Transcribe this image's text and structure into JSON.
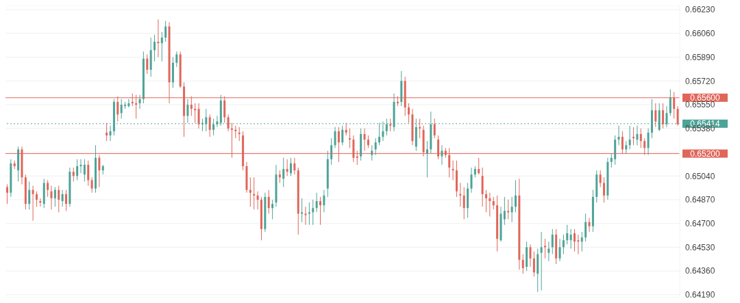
{
  "chart_data": {
    "type": "candlestick",
    "categories": [
      null,
      null,
      null,
      null,
      null,
      null,
      null,
      null,
      null,
      null,
      null,
      null,
      null,
      null,
      null,
      null,
      null,
      null,
      null,
      null,
      null,
      null,
      null,
      null,
      null,
      null,
      null,
      null,
      null,
      null,
      null,
      null,
      null,
      null,
      null,
      null,
      null,
      null,
      null,
      null,
      null,
      null,
      null,
      null,
      null,
      null,
      null,
      null,
      null,
      null,
      null,
      null,
      null,
      null,
      null,
      null,
      null,
      null,
      null,
      null,
      null,
      null,
      null,
      null,
      null,
      null,
      null,
      null,
      null,
      null,
      null,
      null,
      null,
      null,
      null,
      null,
      null,
      null,
      null,
      null,
      null,
      null,
      null,
      null,
      null,
      null,
      null,
      null,
      null,
      null,
      null,
      null,
      null,
      null,
      null,
      null,
      null,
      null,
      null,
      null,
      null,
      null,
      null,
      null,
      null,
      null,
      null,
      null,
      null,
      null,
      null,
      null,
      null,
      null,
      null,
      null,
      null,
      null,
      null,
      null,
      null,
      null,
      null,
      null,
      null,
      null,
      null,
      null,
      null,
      null,
      null,
      null,
      null,
      null,
      null,
      null,
      null,
      null,
      null,
      null,
      null,
      null,
      null,
      null,
      null,
      null,
      null,
      null,
      null,
      null,
      null,
      null,
      null,
      null,
      null,
      null,
      null,
      null,
      null,
      null,
      null,
      null,
      null,
      null,
      null,
      null,
      null,
      null,
      null,
      null,
      null,
      null,
      null,
      null,
      null,
      null,
      null,
      null,
      null,
      null,
      null,
      null,
      null
    ],
    "ohlc": [
      [
        0.6496,
        0.6498,
        0.6484,
        0.6492
      ],
      [
        0.6492,
        0.6516,
        0.6489,
        0.6513
      ],
      [
        0.6513,
        0.6515,
        0.6509,
        0.6511
      ],
      [
        0.6508,
        0.6525,
        0.65,
        0.6523
      ],
      [
        0.6523,
        0.6525,
        0.6498,
        0.6503
      ],
      [
        0.6503,
        0.6505,
        0.648,
        0.6484
      ],
      [
        0.6484,
        0.65,
        0.648,
        0.6494
      ],
      [
        0.6494,
        0.6497,
        0.6472,
        0.6491
      ],
      [
        0.6491,
        0.6493,
        0.6482,
        0.6487
      ],
      [
        0.6486,
        0.6488,
        0.6482,
        0.6485
      ],
      [
        0.6484,
        0.6502,
        0.6481,
        0.6499
      ],
      [
        0.6499,
        0.6501,
        0.6489,
        0.6494
      ],
      [
        0.6493,
        0.6497,
        0.648,
        0.6488
      ],
      [
        0.6488,
        0.6496,
        0.6482,
        0.6494
      ],
      [
        0.6494,
        0.6497,
        0.6478,
        0.6487
      ],
      [
        0.6486,
        0.6494,
        0.6482,
        0.6491
      ],
      [
        0.6491,
        0.6494,
        0.6479,
        0.6484
      ],
      [
        0.6484,
        0.651,
        0.6482,
        0.6507
      ],
      [
        0.6507,
        0.651,
        0.65,
        0.6504
      ],
      [
        0.6504,
        0.6516,
        0.6501,
        0.6511
      ],
      [
        0.6511,
        0.6516,
        0.6506,
        0.6512
      ],
      [
        0.6505,
        0.6516,
        0.65,
        0.6512
      ],
      [
        0.6512,
        0.6515,
        0.6497,
        0.6501
      ],
      [
        0.6501,
        0.6503,
        0.6492,
        0.6495
      ],
      [
        0.6495,
        0.6526,
        0.6492,
        0.6517
      ],
      [
        0.6517,
        0.6519,
        0.6496,
        0.6508
      ],
      [
        0.6508,
        0.6512,
        0.6505,
        0.6511
      ],
      [
        0.6535,
        0.6542,
        0.6529,
        0.6533
      ],
      [
        0.6533,
        0.654,
        0.6529,
        0.6536
      ],
      [
        0.6536,
        0.6559,
        0.6533,
        0.6557
      ],
      [
        0.6557,
        0.6561,
        0.6543,
        0.6548
      ],
      [
        0.6549,
        0.6559,
        0.6545,
        0.6555
      ],
      [
        0.6554,
        0.6557,
        0.6552,
        0.6555
      ],
      [
        0.6554,
        0.6559,
        0.6553,
        0.6556
      ],
      [
        0.6557,
        0.6563,
        0.6554,
        0.6556
      ],
      [
        0.6556,
        0.6562,
        0.6545,
        0.6555
      ],
      [
        0.6556,
        0.6562,
        0.6552,
        0.6559
      ],
      [
        0.6559,
        0.6593,
        0.6556,
        0.6588
      ],
      [
        0.6588,
        0.6591,
        0.6577,
        0.658
      ],
      [
        0.658,
        0.6603,
        0.6575,
        0.6594
      ],
      [
        0.6594,
        0.6605,
        0.6586,
        0.66
      ],
      [
        0.66,
        0.6616,
        0.6589,
        0.6599
      ],
      [
        0.6599,
        0.6607,
        0.6586,
        0.6603
      ],
      [
        0.6603,
        0.6615,
        0.66,
        0.6611
      ],
      [
        0.6611,
        0.6614,
        0.6556,
        0.6571
      ],
      [
        0.6571,
        0.6589,
        0.6567,
        0.6585
      ],
      [
        0.6585,
        0.6593,
        0.6582,
        0.6591
      ],
      [
        0.6591,
        0.6593,
        0.6567,
        0.6568
      ],
      [
        0.6568,
        0.6571,
        0.6532,
        0.6547
      ],
      [
        0.6547,
        0.6559,
        0.6542,
        0.6555
      ],
      [
        0.6555,
        0.6561,
        0.6547,
        0.6552
      ],
      [
        0.6552,
        0.6556,
        0.6542,
        0.6551
      ],
      [
        0.6552,
        0.6556,
        0.6538,
        0.6541
      ],
      [
        0.6541,
        0.6545,
        0.6536,
        0.6542
      ],
      [
        0.6541,
        0.6552,
        0.6536,
        0.6546
      ],
      [
        0.6546,
        0.6548,
        0.6532,
        0.6537
      ],
      [
        0.6537,
        0.6545,
        0.6533,
        0.6541
      ],
      [
        0.6541,
        0.6547,
        0.6539,
        0.6543
      ],
      [
        0.6542,
        0.6562,
        0.654,
        0.6558
      ],
      [
        0.6558,
        0.6561,
        0.6542,
        0.6546
      ],
      [
        0.6546,
        0.6548,
        0.6536,
        0.6538
      ],
      [
        0.6538,
        0.6542,
        0.6517,
        0.6537
      ],
      [
        0.6537,
        0.654,
        0.6531,
        0.6536
      ],
      [
        0.6535,
        0.6539,
        0.6529,
        0.6534
      ],
      [
        0.6533,
        0.6536,
        0.6508,
        0.6511
      ],
      [
        0.6511,
        0.6514,
        0.6492,
        0.6494
      ],
      [
        0.6494,
        0.6503,
        0.6482,
        0.6492
      ],
      [
        0.6491,
        0.6503,
        0.648,
        0.649
      ],
      [
        0.649,
        0.6493,
        0.648,
        0.6487
      ],
      [
        0.6487,
        0.6489,
        0.6458,
        0.6466
      ],
      [
        0.6466,
        0.6492,
        0.6464,
        0.6489
      ],
      [
        0.6489,
        0.6494,
        0.6477,
        0.6481
      ],
      [
        0.6481,
        0.6487,
        0.6473,
        0.6484
      ],
      [
        0.6485,
        0.6512,
        0.6482,
        0.6505
      ],
      [
        0.6505,
        0.6508,
        0.6499,
        0.6503
      ],
      [
        0.6502,
        0.6517,
        0.6496,
        0.6509
      ],
      [
        0.6509,
        0.6516,
        0.6504,
        0.6507
      ],
      [
        0.6506,
        0.6517,
        0.6504,
        0.6513
      ],
      [
        0.6513,
        0.6517,
        0.6505,
        0.6508
      ],
      [
        0.6508,
        0.651,
        0.6462,
        0.6477
      ],
      [
        0.6477,
        0.6488,
        0.6471,
        0.6478
      ],
      [
        0.6477,
        0.6482,
        0.6469,
        0.6476
      ],
      [
        0.6477,
        0.6485,
        0.6469,
        0.6478
      ],
      [
        0.6478,
        0.6487,
        0.6469,
        0.6481
      ],
      [
        0.6481,
        0.6492,
        0.6478,
        0.6486
      ],
      [
        0.6486,
        0.6489,
        0.6469,
        0.6483
      ],
      [
        0.6483,
        0.6494,
        0.6478,
        0.649
      ],
      [
        0.6495,
        0.6522,
        0.6489,
        0.6516
      ],
      [
        0.6516,
        0.6531,
        0.6512,
        0.6526
      ],
      [
        0.6526,
        0.6539,
        0.6524,
        0.6536
      ],
      [
        0.6536,
        0.6539,
        0.6514,
        0.6528
      ],
      [
        0.6528,
        0.654,
        0.6526,
        0.6537
      ],
      [
        0.6537,
        0.6542,
        0.6533,
        0.6535
      ],
      [
        0.6531,
        0.6538,
        0.6524,
        0.653
      ],
      [
        0.653,
        0.6533,
        0.6514,
        0.6517
      ],
      [
        0.6518,
        0.6522,
        0.6512,
        0.6517
      ],
      [
        0.6518,
        0.6538,
        0.6515,
        0.6534
      ],
      [
        0.6534,
        0.6538,
        0.6522,
        0.653
      ],
      [
        0.653,
        0.6533,
        0.6524,
        0.6526
      ],
      [
        0.6519,
        0.6526,
        0.6515,
        0.6522
      ],
      [
        0.6523,
        0.6531,
        0.6519,
        0.6528
      ],
      [
        0.6528,
        0.6542,
        0.6526,
        0.6532
      ],
      [
        0.6532,
        0.6543,
        0.6529,
        0.6536
      ],
      [
        0.6536,
        0.6545,
        0.6533,
        0.6541
      ],
      [
        0.6541,
        0.6545,
        0.6536,
        0.654
      ],
      [
        0.6539,
        0.6563,
        0.6536,
        0.6557
      ],
      [
        0.6557,
        0.6561,
        0.6554,
        0.6556
      ],
      [
        0.6557,
        0.6579,
        0.6554,
        0.6572
      ],
      [
        0.6572,
        0.6575,
        0.6547,
        0.6553
      ],
      [
        0.6553,
        0.6556,
        0.6542,
        0.6548
      ],
      [
        0.6548,
        0.6552,
        0.6526,
        0.6529
      ],
      [
        0.6525,
        0.6545,
        0.6522,
        0.6539
      ],
      [
        0.6539,
        0.6545,
        0.6531,
        0.6538
      ],
      [
        0.6537,
        0.654,
        0.6518,
        0.6521
      ],
      [
        0.652,
        0.6529,
        0.6503,
        0.6523
      ],
      [
        0.6523,
        0.655,
        0.652,
        0.6541
      ],
      [
        0.6541,
        0.6545,
        0.6531,
        0.6533
      ],
      [
        0.653,
        0.6533,
        0.6516,
        0.6518
      ],
      [
        0.6518,
        0.6526,
        0.6512,
        0.6522
      ],
      [
        0.6522,
        0.6524,
        0.6517,
        0.6519
      ],
      [
        0.6519,
        0.6524,
        0.6503,
        0.651
      ],
      [
        0.6509,
        0.6515,
        0.6501,
        0.6508
      ],
      [
        0.6508,
        0.6515,
        0.6489,
        0.6493
      ],
      [
        0.6491,
        0.6499,
        0.6482,
        0.649
      ],
      [
        0.649,
        0.6496,
        0.6473,
        0.6481
      ],
      [
        0.6481,
        0.6499,
        0.6474,
        0.6495
      ],
      [
        0.6495,
        0.651,
        0.6492,
        0.6505
      ],
      [
        0.6505,
        0.6511,
        0.6503,
        0.6509
      ],
      [
        0.6509,
        0.6517,
        0.6505,
        0.6506
      ],
      [
        0.6504,
        0.651,
        0.6482,
        0.6491
      ],
      [
        0.6491,
        0.6494,
        0.6478,
        0.6488
      ],
      [
        0.6488,
        0.6492,
        0.6475,
        0.6486
      ],
      [
        0.6486,
        0.6489,
        0.648,
        0.6483
      ],
      [
        0.6483,
        0.649,
        0.645,
        0.6459
      ],
      [
        0.6458,
        0.6482,
        0.6457,
        0.6477
      ],
      [
        0.6473,
        0.6489,
        0.6469,
        0.6479
      ],
      [
        0.6479,
        0.6487,
        0.6473,
        0.6478
      ],
      [
        0.6478,
        0.6489,
        0.6471,
        0.6482
      ],
      [
        0.6482,
        0.6501,
        0.6478,
        0.649
      ],
      [
        0.649,
        0.6502,
        0.6437,
        0.6444
      ],
      [
        0.6444,
        0.6448,
        0.6434,
        0.6438
      ],
      [
        0.6439,
        0.6457,
        0.6436,
        0.6453
      ],
      [
        0.6453,
        0.6455,
        0.6439,
        0.6445
      ],
      [
        0.6445,
        0.645,
        0.6432,
        0.6435
      ],
      [
        0.6434,
        0.6452,
        0.6421,
        0.6448
      ],
      [
        0.6449,
        0.6464,
        0.6422,
        0.6453
      ],
      [
        0.6454,
        0.6459,
        0.6445,
        0.6453
      ],
      [
        0.6449,
        0.6457,
        0.6443,
        0.6452
      ],
      [
        0.6453,
        0.6466,
        0.6448,
        0.6462
      ],
      [
        0.6462,
        0.6466,
        0.6441,
        0.6445
      ],
      [
        0.6445,
        0.6459,
        0.6443,
        0.6453
      ],
      [
        0.6453,
        0.6462,
        0.6448,
        0.6458
      ],
      [
        0.6458,
        0.6469,
        0.6455,
        0.6463
      ],
      [
        0.6458,
        0.6466,
        0.6452,
        0.6462
      ],
      [
        0.6463,
        0.6466,
        0.645,
        0.6457
      ],
      [
        0.6458,
        0.6462,
        0.6448,
        0.6457
      ],
      [
        0.6457,
        0.6464,
        0.645,
        0.646
      ],
      [
        0.646,
        0.6477,
        0.6457,
        0.6471
      ],
      [
        0.6471,
        0.6474,
        0.6464,
        0.6468
      ],
      [
        0.6468,
        0.6494,
        0.6464,
        0.6489
      ],
      [
        0.6489,
        0.6508,
        0.6485,
        0.6505
      ],
      [
        0.6505,
        0.6508,
        0.6496,
        0.6499
      ],
      [
        0.6499,
        0.6503,
        0.6485,
        0.649
      ],
      [
        0.649,
        0.6517,
        0.6487,
        0.6514
      ],
      [
        0.6514,
        0.652,
        0.651,
        0.6517
      ],
      [
        0.6516,
        0.6533,
        0.6512,
        0.653
      ],
      [
        0.653,
        0.654,
        0.6526,
        0.6532
      ],
      [
        0.6532,
        0.6536,
        0.652,
        0.6523
      ],
      [
        0.6523,
        0.6529,
        0.652,
        0.6526
      ],
      [
        0.6526,
        0.654,
        0.6523,
        0.653
      ],
      [
        0.6532,
        0.6539,
        0.6526,
        0.6531
      ],
      [
        0.653,
        0.654,
        0.6526,
        0.6534
      ],
      [
        0.6534,
        0.6538,
        0.6524,
        0.6529
      ],
      [
        0.6529,
        0.6531,
        0.6519,
        0.6524
      ],
      [
        0.6524,
        0.6538,
        0.6519,
        0.6535
      ],
      [
        0.6535,
        0.6559,
        0.6531,
        0.6551
      ],
      [
        0.6551,
        0.6556,
        0.6539,
        0.6543
      ],
      [
        0.6537,
        0.6556,
        0.6536,
        0.6551
      ],
      [
        0.6551,
        0.6556,
        0.6538,
        0.6541
      ],
      [
        0.6541,
        0.6554,
        0.6539,
        0.6549
      ],
      [
        0.6549,
        0.6566,
        0.6547,
        0.656
      ],
      [
        0.656,
        0.6564,
        0.6545,
        0.6552
      ],
      [
        0.6552,
        0.6554,
        0.654,
        0.6541
      ]
    ],
    "ylim": [
      0.6417,
      0.6626
    ],
    "yticks": [
      {
        "value": 0.6419,
        "label": "0.64190"
      },
      {
        "value": 0.6436,
        "label": "0.64360"
      },
      {
        "value": 0.6453,
        "label": "0.64530"
      },
      {
        "value": 0.647,
        "label": "0.64700"
      },
      {
        "value": 0.6487,
        "label": "0.64870"
      },
      {
        "value": 0.6504,
        "label": "0.65040"
      },
      {
        "value": 0.6521,
        "label": null
      },
      {
        "value": 0.6538,
        "label": "0.65380"
      },
      {
        "value": 0.6555,
        "label": "0.65550"
      },
      {
        "value": 0.6572,
        "label": "0.65720"
      },
      {
        "value": 0.6589,
        "label": "0.65890"
      },
      {
        "value": 0.6606,
        "label": "0.66060"
      },
      {
        "value": 0.6623,
        "label": "0.66230"
      }
    ],
    "ref_lines": [
      {
        "axis": "y",
        "value": 0.656,
        "label": "0.65600",
        "color": "#e0665a",
        "line_style": "solid"
      },
      {
        "axis": "y",
        "value": 0.65414,
        "label": "0.65414",
        "color": "#4da397",
        "line_style": "dotted"
      },
      {
        "axis": "y",
        "value": 0.652,
        "label": "0.65200",
        "color": "#e0665a",
        "line_style": "solid"
      }
    ],
    "grid": "y",
    "tick_labels": "y"
  }
}
